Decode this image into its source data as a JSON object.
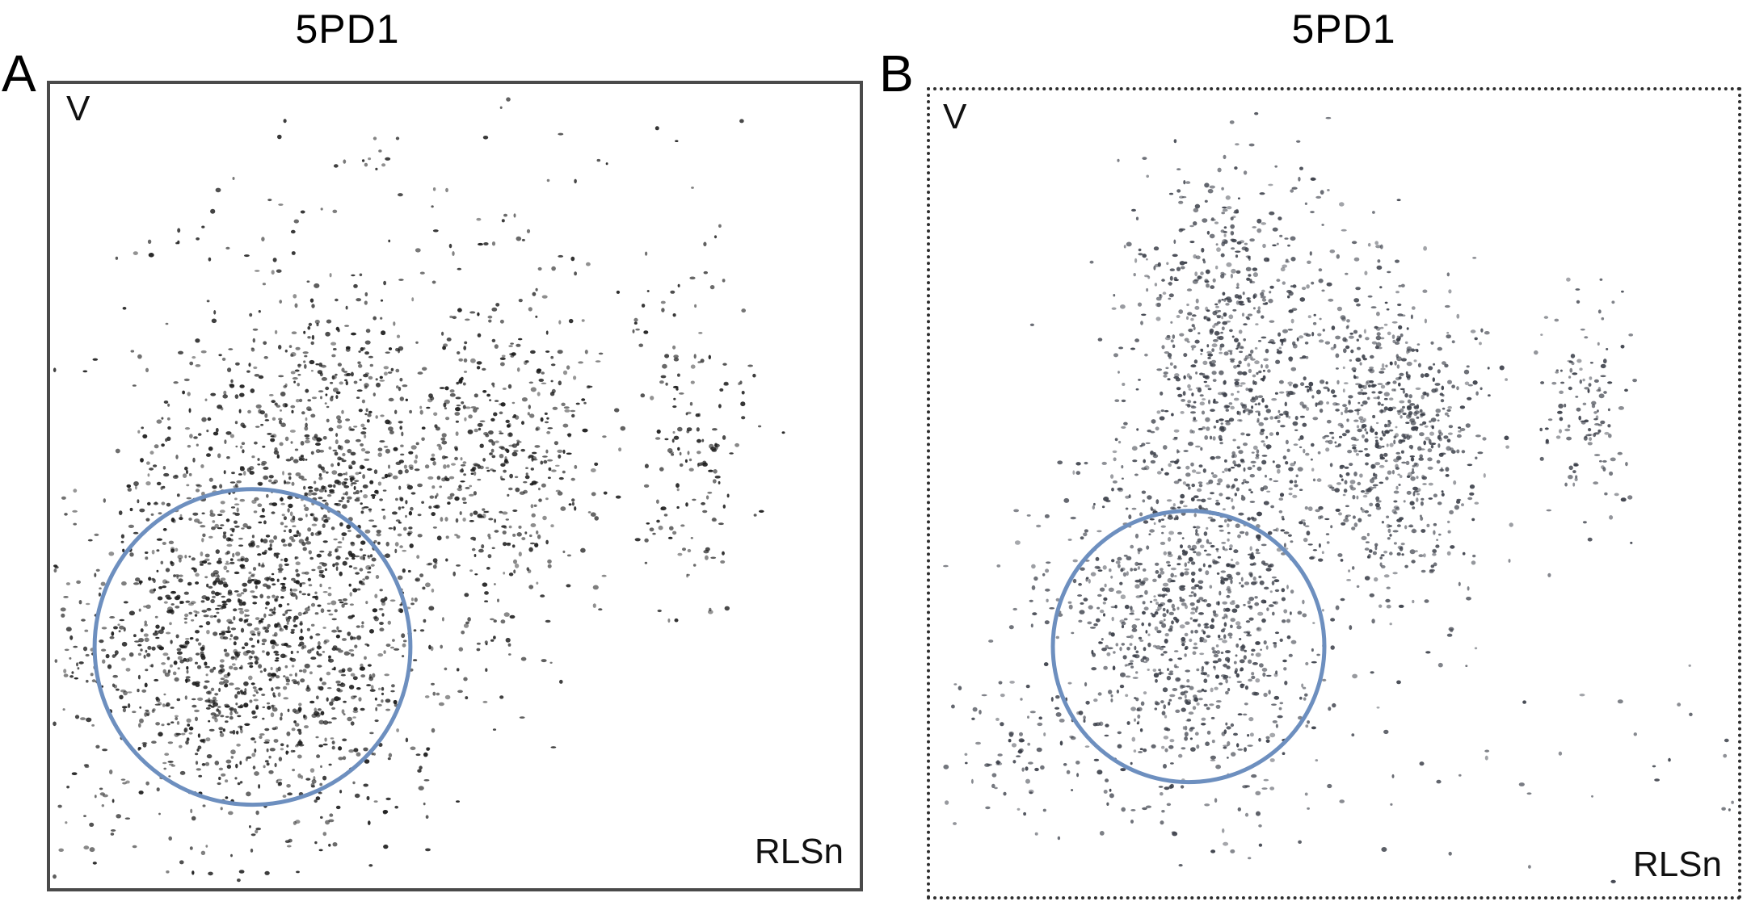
{
  "chart_data": [
    {
      "type": "scatter",
      "panel": "A",
      "title": "5PD1",
      "xlabel": "RLSn",
      "ylabel": "V",
      "grid": false,
      "colors": {
        "points": "#1c1c1c",
        "gate": "#6d8fbf",
        "frame": "#4a4a4a"
      },
      "clusters": [
        {
          "cx": 0.25,
          "cy": 0.3,
          "sx": 0.12,
          "sy": 0.12,
          "n": 1500
        },
        {
          "cx": 0.33,
          "cy": 0.55,
          "sx": 0.1,
          "sy": 0.1,
          "n": 700
        },
        {
          "cx": 0.57,
          "cy": 0.53,
          "sx": 0.055,
          "sy": 0.1,
          "n": 360
        },
        {
          "cx": 0.79,
          "cy": 0.55,
          "sx": 0.035,
          "sy": 0.1,
          "n": 160
        },
        {
          "cx": 0.45,
          "cy": 0.82,
          "sx": 0.2,
          "sy": 0.08,
          "n": 90
        }
      ],
      "gate": {
        "cx": 0.25,
        "cy": 0.3,
        "r": 0.195
      }
    },
    {
      "type": "scatter",
      "panel": "B",
      "title": "5PD1",
      "xlabel": "RLSn",
      "ylabel": "V",
      "grid": false,
      "colors": {
        "points": "#3a3e48",
        "gate": "#6d8fbf",
        "frame": "#2e2e2e"
      },
      "clusters": [
        {
          "cx": 0.32,
          "cy": 0.35,
          "sx": 0.085,
          "sy": 0.11,
          "n": 1000
        },
        {
          "cx": 0.37,
          "cy": 0.68,
          "sx": 0.06,
          "sy": 0.12,
          "n": 700
        },
        {
          "cx": 0.57,
          "cy": 0.58,
          "sx": 0.06,
          "sy": 0.1,
          "n": 700
        },
        {
          "cx": 0.81,
          "cy": 0.6,
          "sx": 0.03,
          "sy": 0.07,
          "n": 130
        },
        {
          "cx": 0.1,
          "cy": 0.18,
          "sx": 0.05,
          "sy": 0.05,
          "n": 70
        },
        {
          "cx": 0.6,
          "cy": 0.18,
          "sx": 0.3,
          "sy": 0.08,
          "n": 60
        }
      ],
      "gate": {
        "cx": 0.32,
        "cy": 0.31,
        "r": 0.168
      }
    }
  ]
}
